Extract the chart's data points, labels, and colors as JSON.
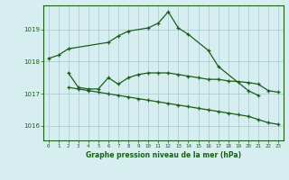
{
  "background_color": "#d6eef0",
  "grid_color": "#b0cdd5",
  "line_color": "#1a5e1a",
  "text_color": "#1a5e1a",
  "xlabel": "Graphe pression niveau de la mer (hPa)",
  "xlim": [
    -0.5,
    23.5
  ],
  "ylim": [
    1015.55,
    1019.75
  ],
  "yticks": [
    1016,
    1017,
    1018,
    1019
  ],
  "xticks": [
    0,
    1,
    2,
    3,
    4,
    5,
    6,
    7,
    8,
    9,
    10,
    11,
    12,
    13,
    14,
    15,
    16,
    17,
    18,
    19,
    20,
    21,
    22,
    23
  ],
  "series1_x": [
    0,
    1,
    2,
    6,
    7,
    8,
    10,
    11,
    12,
    13,
    14,
    16,
    17,
    20,
    21
  ],
  "series1_y": [
    1018.1,
    1018.2,
    1018.4,
    1018.6,
    1018.8,
    1018.95,
    1019.05,
    1019.2,
    1019.55,
    1019.05,
    1018.85,
    1018.35,
    1017.85,
    1017.1,
    1016.95
  ],
  "series2_x": [
    2,
    3,
    4,
    5,
    6,
    7,
    8,
    9,
    10,
    11,
    12,
    13,
    14,
    15,
    16,
    17,
    18,
    19,
    20,
    21,
    22,
    23
  ],
  "series2_y": [
    1017.65,
    1017.2,
    1017.15,
    1017.15,
    1017.5,
    1017.3,
    1017.5,
    1017.6,
    1017.65,
    1017.65,
    1017.65,
    1017.6,
    1017.55,
    1017.5,
    1017.45,
    1017.45,
    1017.4,
    1017.38,
    1017.35,
    1017.3,
    1017.1,
    1017.05
  ],
  "series3_x": [
    2,
    3,
    4,
    5,
    6,
    7,
    8,
    9,
    10,
    11,
    12,
    13,
    14,
    15,
    16,
    17,
    18,
    19,
    20,
    21,
    22,
    23
  ],
  "series3_y": [
    1017.2,
    1017.15,
    1017.1,
    1017.05,
    1017.0,
    1016.95,
    1016.9,
    1016.85,
    1016.8,
    1016.75,
    1016.7,
    1016.65,
    1016.6,
    1016.55,
    1016.5,
    1016.45,
    1016.4,
    1016.35,
    1016.3,
    1016.2,
    1016.1,
    1016.05
  ]
}
